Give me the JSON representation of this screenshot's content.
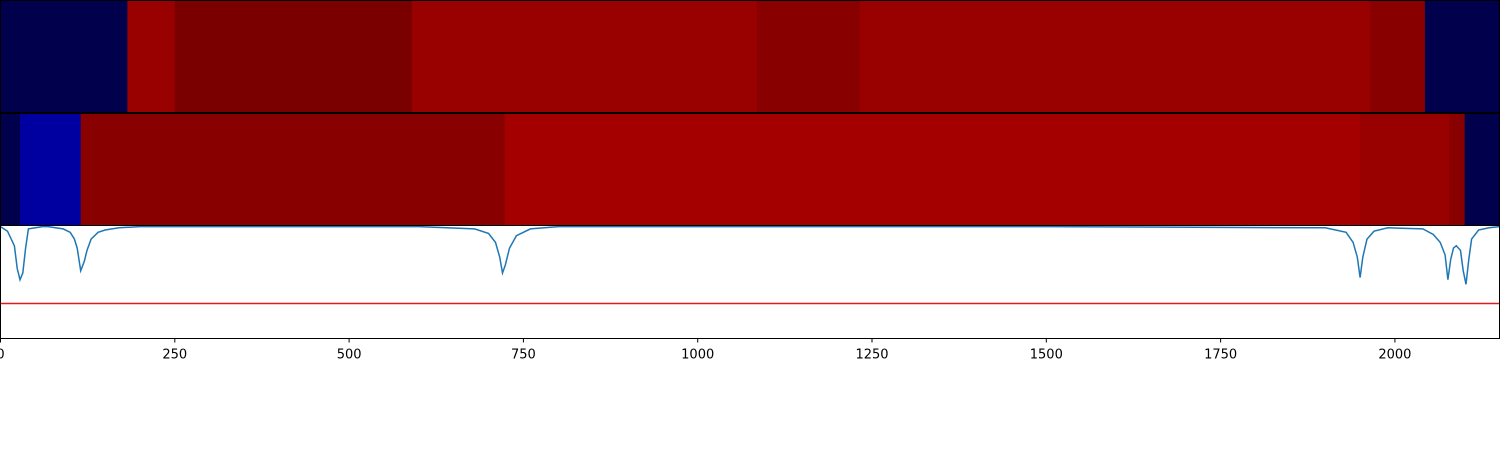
{
  "chart_data": [
    {
      "type": "heatmap",
      "panel": "top-band",
      "xlim": [
        0,
        2150
      ],
      "segments": [
        {
          "start": 0,
          "end": 182,
          "color": "#00004d"
        },
        {
          "start": 182,
          "end": 250,
          "color": "#990000"
        },
        {
          "start": 250,
          "end": 590,
          "color": "#7a0000"
        },
        {
          "start": 590,
          "end": 1085,
          "color": "#990000"
        },
        {
          "start": 1085,
          "end": 1232,
          "color": "#880000"
        },
        {
          "start": 1232,
          "end": 1965,
          "color": "#990000"
        },
        {
          "start": 1965,
          "end": 2043,
          "color": "#880000"
        },
        {
          "start": 2043,
          "end": 2150,
          "color": "#00004d"
        }
      ]
    },
    {
      "type": "heatmap",
      "panel": "middle-band",
      "xlim": [
        0,
        2150
      ],
      "segments": [
        {
          "start": 0,
          "end": 28,
          "color": "#00004d"
        },
        {
          "start": 28,
          "end": 115,
          "color": "#0000a0"
        },
        {
          "start": 115,
          "end": 723,
          "color": "#880000"
        },
        {
          "start": 723,
          "end": 1950,
          "color": "#a50000"
        },
        {
          "start": 1950,
          "end": 2078,
          "color": "#990000"
        },
        {
          "start": 2078,
          "end": 2100,
          "color": "#880000"
        },
        {
          "start": 2100,
          "end": 2150,
          "color": "#00004d"
        }
      ]
    },
    {
      "type": "line",
      "panel": "signal",
      "xlim": [
        0,
        2150
      ],
      "ylim": [
        0,
        1
      ],
      "x_ticks": [
        0,
        250,
        500,
        750,
        1000,
        1250,
        1500,
        1750,
        2000
      ],
      "x_tick_labels": [
        "0",
        "250",
        "500",
        "750",
        "1000",
        "1250",
        "1500",
        "1750",
        "2000"
      ],
      "threshold": 0.31,
      "series": [
        {
          "color": "#1f77b4",
          "x": [
            0,
            10,
            20,
            24,
            28,
            32,
            36,
            40,
            50,
            60,
            68,
            90,
            100,
            106,
            110,
            115,
            120,
            124,
            130,
            140,
            150,
            160,
            170,
            200,
            400,
            600,
            680,
            700,
            710,
            716,
            720,
            724,
            730,
            740,
            760,
            800,
            1000,
            1500,
            1900,
            1930,
            1940,
            1946,
            1950,
            1954,
            1960,
            1970,
            1990,
            2040,
            2055,
            2065,
            2072,
            2076,
            2080,
            2084,
            2088,
            2094,
            2098,
            2102,
            2106,
            2110,
            2120,
            2135,
            2150
          ],
          "y": [
            0.99,
            0.95,
            0.82,
            0.62,
            0.52,
            0.58,
            0.8,
            0.97,
            0.98,
            0.99,
            0.99,
            0.97,
            0.94,
            0.88,
            0.8,
            0.6,
            0.68,
            0.78,
            0.88,
            0.94,
            0.96,
            0.97,
            0.98,
            0.99,
            0.99,
            0.99,
            0.97,
            0.93,
            0.85,
            0.72,
            0.58,
            0.65,
            0.8,
            0.91,
            0.97,
            0.99,
            0.99,
            0.99,
            0.98,
            0.94,
            0.85,
            0.72,
            0.54,
            0.72,
            0.88,
            0.95,
            0.98,
            0.97,
            0.92,
            0.85,
            0.74,
            0.52,
            0.7,
            0.8,
            0.82,
            0.78,
            0.6,
            0.48,
            0.7,
            0.88,
            0.96,
            0.98,
            0.99
          ]
        }
      ]
    }
  ]
}
